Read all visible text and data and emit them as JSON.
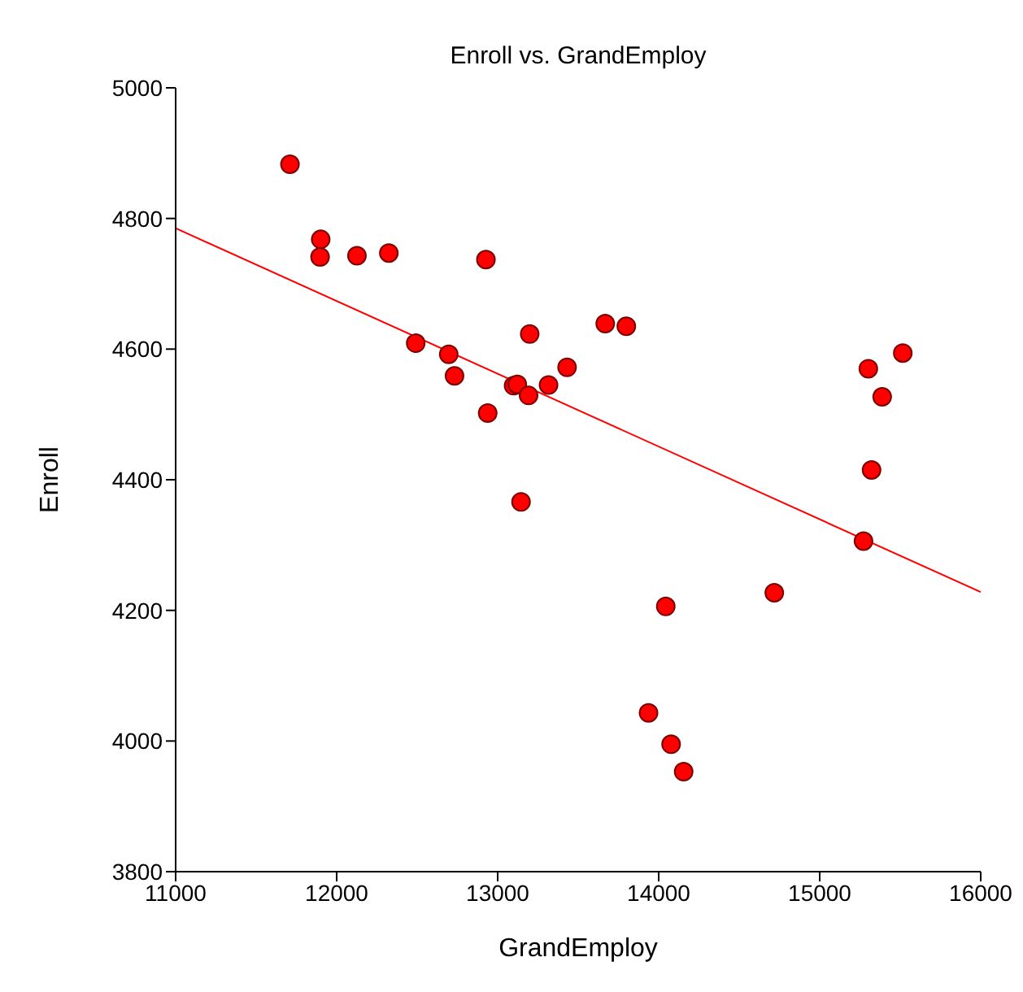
{
  "chart_data": {
    "type": "scatter",
    "title": "Enroll vs. GrandEmploy",
    "xlabel": "GrandEmploy",
    "ylabel": "Enroll",
    "xlim": [
      11000,
      16000
    ],
    "xticks": [
      11000,
      12000,
      13000,
      14000,
      15000,
      16000
    ],
    "ylim": [
      3800,
      5000
    ],
    "yticks": [
      3800,
      4000,
      4200,
      4400,
      4600,
      4800,
      5000
    ],
    "grid": false,
    "legend": false,
    "marker": "circle",
    "series": [
      {
        "color": "#ff0000",
        "x": [
          11710,
          11901,
          11897,
          12126,
          12324,
          12491,
          12927,
          12696,
          12732,
          12938,
          13199,
          13099,
          13122,
          13192,
          13316,
          13431,
          13145,
          13668,
          13799,
          15302,
          15516,
          15388,
          15322,
          15272,
          14044,
          14718,
          13937,
          14077,
          14155
        ],
        "values": [
          4883,
          4768,
          4741,
          4743,
          4747,
          4609,
          4737,
          4592,
          4559,
          4502,
          4623,
          4544,
          4546,
          4529,
          4545,
          4572,
          4366,
          4639,
          4635,
          4570,
          4594,
          4527,
          4415,
          4306,
          4206,
          4227,
          4043,
          3995,
          3953
        ]
      },
      {
        "type": "line",
        "color": "#ff0000",
        "x": [
          11000,
          16000
        ],
        "values": [
          4785,
          4228
        ],
        "line_style": "solid",
        "marker": "none"
      }
    ]
  }
}
